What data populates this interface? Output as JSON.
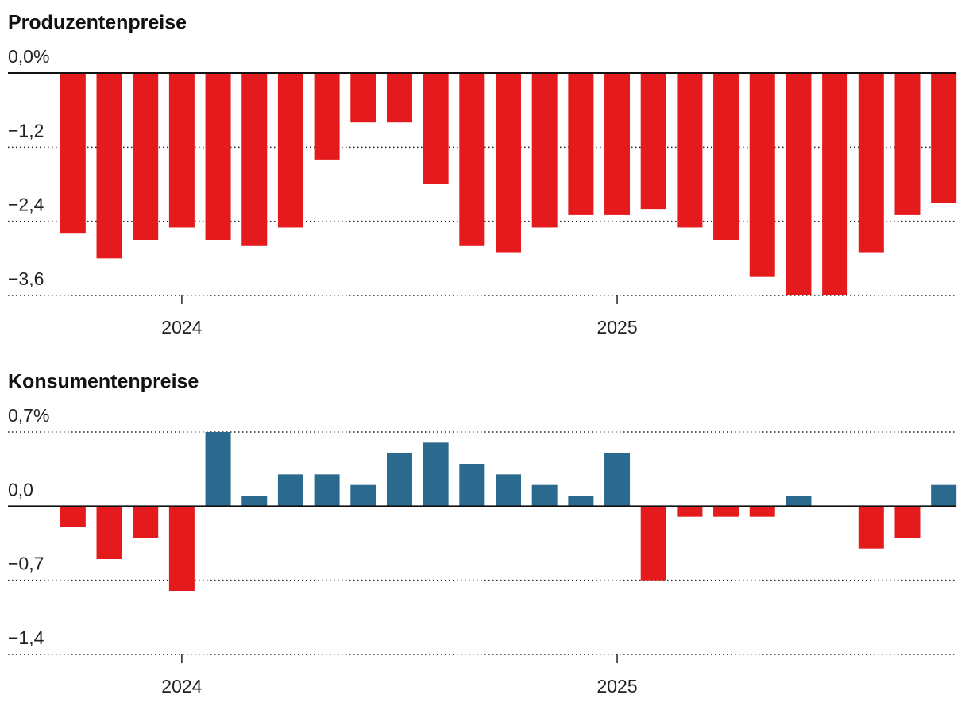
{
  "chart_data": [
    {
      "type": "bar",
      "title": "Produzentenpreise",
      "categories": [
        null,
        null,
        null,
        "2024",
        null,
        null,
        null,
        null,
        null,
        null,
        null,
        null,
        null,
        null,
        null,
        "2025",
        null,
        null,
        null,
        null,
        null,
        null,
        null,
        null,
        null
      ],
      "values": [
        -2.6,
        -3.0,
        -2.7,
        -2.5,
        -2.7,
        -2.8,
        -2.5,
        -1.4,
        -0.8,
        -0.8,
        -1.8,
        -2.8,
        -2.9,
        -2.5,
        -2.3,
        -2.3,
        -2.2,
        -2.5,
        -2.7,
        -3.3,
        -3.6,
        -3.6,
        -2.9,
        -2.3,
        -2.1
      ],
      "color": "#e41a1c",
      "ylim": [
        -3.6,
        0
      ],
      "yticks": [
        {
          "value": 0,
          "label": "0,0%"
        },
        {
          "value": -1.2,
          "label": "−1,2"
        },
        {
          "value": -2.4,
          "label": "−2,4"
        },
        {
          "value": -3.6,
          "label": "−3,6"
        }
      ],
      "grid": true
    },
    {
      "type": "bar",
      "title": "Konsumentenpreise",
      "categories": [
        null,
        null,
        null,
        "2024",
        null,
        null,
        null,
        null,
        null,
        null,
        null,
        null,
        null,
        null,
        null,
        "2025",
        null,
        null,
        null,
        null,
        null,
        null,
        null,
        null,
        null
      ],
      "values": [
        -0.2,
        -0.5,
        -0.3,
        -0.8,
        0.7,
        0.1,
        0.3,
        0.3,
        0.2,
        0.5,
        0.6,
        0.4,
        0.3,
        0.2,
        0.1,
        0.5,
        -0.7,
        -0.1,
        -0.1,
        -0.1,
        0.1,
        0,
        -0.4,
        -0.3,
        0.2
      ],
      "positive_color": "#2b6a8e",
      "negative_color": "#e41a1c",
      "ylim": [
        -1.4,
        0.7
      ],
      "yticks": [
        {
          "value": 0.7,
          "label": "0,7%"
        },
        {
          "value": 0,
          "label": "0,0"
        },
        {
          "value": -0.7,
          "label": "−0,7"
        },
        {
          "value": -1.4,
          "label": "−1,4"
        }
      ],
      "grid": true
    }
  ]
}
